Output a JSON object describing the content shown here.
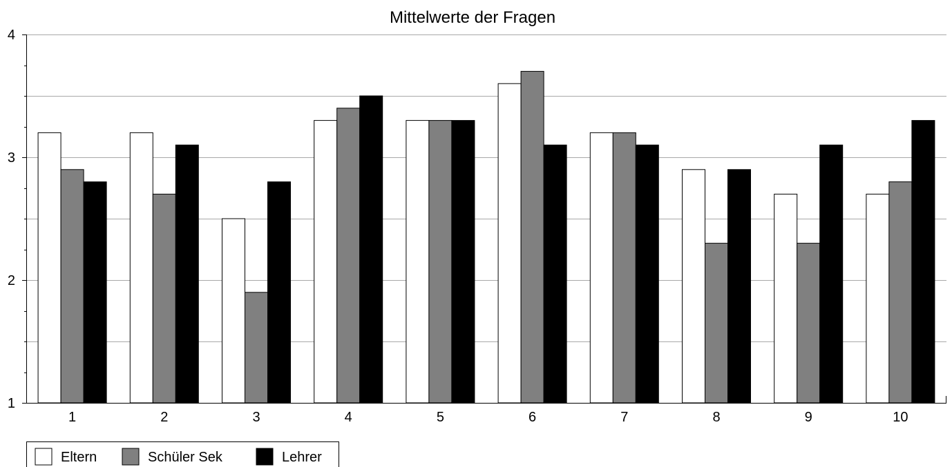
{
  "chart_data": {
    "type": "bar",
    "title": "Mittelwerte der Fragen",
    "xlabel": "",
    "ylabel": "",
    "categories": [
      "1",
      "2",
      "3",
      "4",
      "5",
      "6",
      "7",
      "8",
      "9",
      "10"
    ],
    "series": [
      {
        "name": "Eltern",
        "color": "#ffffff",
        "values": [
          3.2,
          3.2,
          2.5,
          3.3,
          3.3,
          3.6,
          3.2,
          2.9,
          2.7,
          2.7
        ]
      },
      {
        "name": "Schüler Sek",
        "color": "#808080",
        "values": [
          2.9,
          2.7,
          1.9,
          3.4,
          3.3,
          3.7,
          3.2,
          2.3,
          2.3,
          2.8
        ]
      },
      {
        "name": "Lehrer",
        "color": "#000000",
        "values": [
          2.8,
          3.1,
          2.8,
          3.5,
          3.3,
          3.1,
          3.1,
          2.9,
          3.1,
          3.3
        ]
      }
    ],
    "ylim": [
      1,
      4
    ],
    "yticks": [
      "1",
      "2",
      "3",
      "4"
    ],
    "grid": true,
    "legend_position": "bottom-left"
  }
}
